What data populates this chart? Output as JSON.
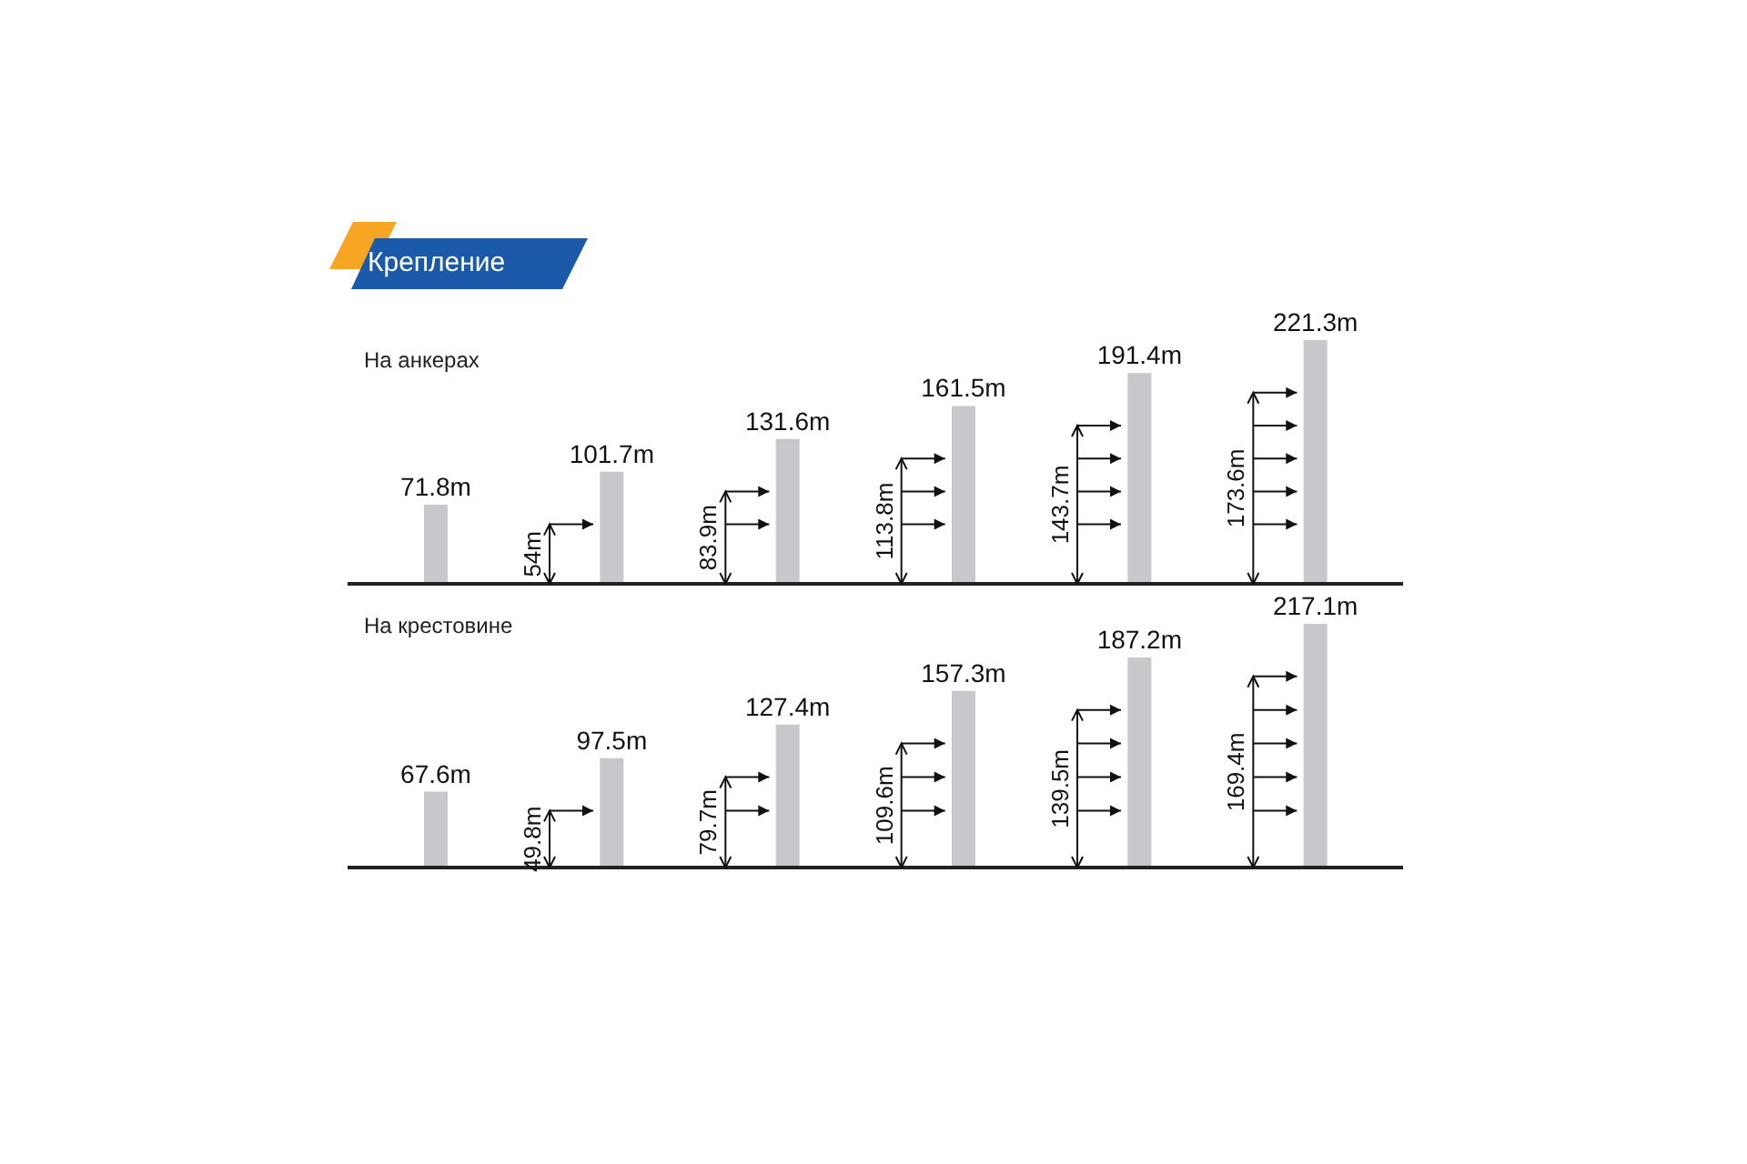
{
  "chart_data": [
    {
      "type": "bar",
      "title": "Крепление",
      "subtitle": "На анкерах",
      "categories": [
        null,
        null,
        null,
        null,
        null,
        null
      ],
      "values": [
        71.8,
        101.7,
        131.6,
        161.5,
        191.4,
        221.3
      ],
      "color": "#c8c8cc",
      "value_labels": [
        "71.8m",
        "101.7m",
        "131.6m",
        "161.5m",
        "191.4m",
        "221.3m"
      ],
      "annotations": [
        "54m",
        "83.9m",
        "113.8m",
        "143.7m",
        "173.6m"
      ]
    },
    {
      "type": "bar",
      "title": "На крестовине",
      "categories": [
        null,
        null,
        null,
        null,
        null,
        null
      ],
      "values": [
        67.6,
        97.5,
        127.4,
        157.3,
        187.2,
        217.1
      ],
      "color": "#c8c8cc",
      "value_labels": [
        "67.6m",
        "97.5m",
        "127.4m",
        "157.3m",
        "187.2m",
        "217.1m"
      ],
      "annotations": [
        "49.8m",
        "79.7m",
        "109.6m",
        "139.5m",
        "169.4m"
      ]
    }
  ]
}
